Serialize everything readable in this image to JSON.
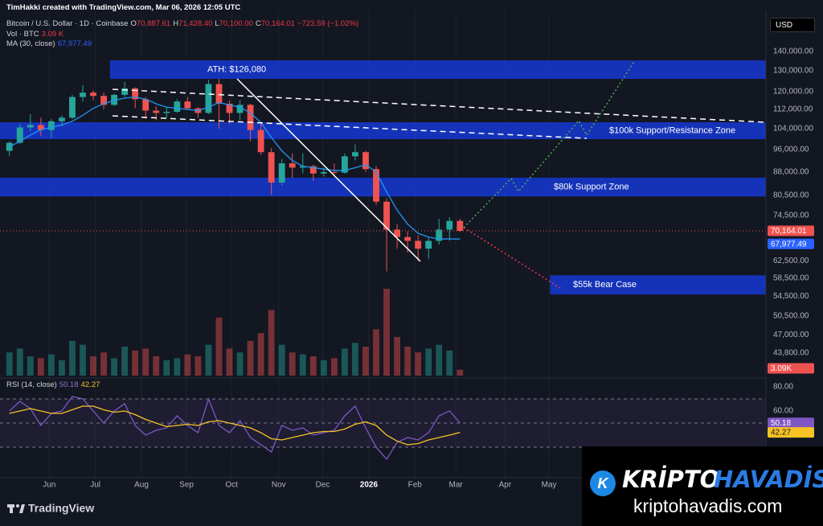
{
  "header": {
    "credit": "TimHakki created with TradingView.com, Mar 06, 2026 12:05 UTC",
    "symbol": "Bitcoin / U.S. Dollar · 1D · Coinbase",
    "ohlc": [
      {
        "key": "O",
        "value": "70,887.61"
      },
      {
        "key": "H",
        "value": "71,428.40"
      },
      {
        "key": "L",
        "value": "70,100.00"
      },
      {
        "key": "C",
        "value": "70,164.01"
      }
    ],
    "change": "−723.59 (−1.02%)"
  },
  "currency": "USD",
  "branding": {
    "tradingview": "TradingView",
    "site_name_1": "KRİPTO",
    "site_name_2": "HAVADİS",
    "site_url": "kriptohavadis.com"
  },
  "chart_data": {
    "type": "candlestick",
    "log_scale": true,
    "grid": true,
    "up_color": "#26a69a",
    "down_color": "#ef5350",
    "xlim": [
      -0.9,
      72.2
    ],
    "xticks": [
      {
        "value": 3.8,
        "label": "Jun"
      },
      {
        "value": 8.2,
        "label": "Jul"
      },
      {
        "value": 12.6,
        "label": "Aug"
      },
      {
        "value": 16.9,
        "label": "Sep"
      },
      {
        "value": 21.2,
        "label": "Oct"
      },
      {
        "value": 25.7,
        "label": "Nov"
      },
      {
        "value": 29.9,
        "label": "Dec"
      },
      {
        "value": 34.3,
        "label": "2026"
      },
      {
        "value": 38.7,
        "label": "Feb"
      },
      {
        "value": 42.6,
        "label": "Mar"
      },
      {
        "value": 47.3,
        "label": "Apr"
      },
      {
        "value": 51.5,
        "label": "May"
      }
    ],
    "ylim": [
      40160,
      160500
    ],
    "yticks": [
      {
        "value": 140000,
        "label": "140,000.00"
      },
      {
        "value": 130000,
        "label": "130,000.00"
      },
      {
        "value": 120000,
        "label": "120,000.00"
      },
      {
        "value": 112000,
        "label": "112,000.00"
      },
      {
        "value": 104000,
        "label": "104,000.00"
      },
      {
        "value": 96000,
        "label": "96,000.00"
      },
      {
        "value": 88000,
        "label": "88,000.00"
      },
      {
        "value": 80500,
        "label": "80,500.00"
      },
      {
        "value": 74500,
        "label": "74,500.00"
      },
      {
        "value": 62500,
        "label": "62,500.00"
      },
      {
        "value": 58500,
        "label": "58,500.00"
      },
      {
        "value": 54500,
        "label": "54,500.00"
      },
      {
        "value": 50500,
        "label": "50,500.00"
      },
      {
        "value": 47000,
        "label": "47,000.00"
      },
      {
        "value": 43800,
        "label": "43,800.00"
      }
    ],
    "open": [
      95500,
      98500,
      104500,
      105500,
      103500,
      107000,
      108500,
      117500,
      119500,
      118000,
      114000,
      118500,
      121500,
      116500,
      111500,
      110500,
      111000,
      115500,
      112500,
      110500,
      123500,
      114500,
      110500,
      114000,
      103500,
      95000,
      84500,
      91000,
      89500,
      90000,
      87500,
      88000,
      87800,
      93500,
      95000,
      89000,
      78500,
      70500,
      68500,
      67500,
      65500,
      67500,
      70500,
      72900
    ],
    "high": [
      99000,
      106000,
      110000,
      108500,
      108000,
      109500,
      118500,
      123000,
      120500,
      119500,
      119000,
      124500,
      122000,
      117500,
      113500,
      113000,
      116500,
      117500,
      113000,
      125500,
      126080,
      116000,
      116000,
      114500,
      106500,
      96500,
      92500,
      94500,
      94500,
      90500,
      89500,
      91000,
      94500,
      97900,
      95500,
      90000,
      79500,
      72000,
      70000,
      69000,
      68500,
      73500,
      74000,
      73500
    ],
    "low": [
      93500,
      98000,
      103000,
      101000,
      100500,
      105000,
      108000,
      115500,
      116000,
      112000,
      113500,
      117500,
      112500,
      108000,
      107500,
      108500,
      110500,
      112000,
      108500,
      110000,
      104000,
      106000,
      107500,
      99000,
      94000,
      80600,
      83500,
      86000,
      87500,
      85000,
      86500,
      86500,
      87500,
      92000,
      88000,
      77500,
      60000,
      65500,
      64500,
      62500,
      63000,
      66500,
      67500,
      69800
    ],
    "close": [
      98500,
      104500,
      105500,
      103500,
      107000,
      108500,
      117500,
      119500,
      118000,
      114000,
      118500,
      121500,
      116500,
      111500,
      110500,
      111000,
      115500,
      112500,
      110500,
      123500,
      114500,
      110500,
      114000,
      103500,
      95000,
      84500,
      91000,
      89500,
      90000,
      87500,
      88000,
      87800,
      93500,
      95000,
      89000,
      78500,
      70500,
      68500,
      67500,
      65500,
      67500,
      70500,
      72900,
      70164.01
    ],
    "last_price": {
      "value": 70164.01,
      "label": "70,164.01"
    },
    "ma": {
      "name": "MA (30, close)",
      "color": "#2196f3",
      "values": [
        97000,
        99000,
        101500,
        103500,
        104500,
        105500,
        107000,
        109500,
        112500,
        114500,
        116000,
        117000,
        117500,
        116500,
        114500,
        113000,
        112500,
        112000,
        111500,
        113000,
        115000,
        114000,
        113000,
        110500,
        106500,
        100500,
        95500,
        92000,
        90000,
        89500,
        89000,
        88500,
        88500,
        89500,
        90500,
        88000,
        81500,
        76000,
        72000,
        69500,
        68500,
        68000,
        68000,
        67977.49
      ],
      "value_label": "67,977.49"
    },
    "volume": {
      "name": "Vol · BTC",
      "ylim": [
        0,
        50
      ],
      "values": [
        12,
        14,
        10,
        9,
        11,
        8,
        18,
        16,
        10,
        12,
        9,
        15,
        13,
        14,
        10,
        8,
        9,
        11,
        10,
        16,
        30,
        14,
        12,
        18,
        22,
        34,
        16,
        12,
        11,
        10,
        8,
        9,
        14,
        17,
        15,
        24,
        45,
        20,
        15,
        12,
        14,
        16,
        13,
        3.09
      ],
      "value_label": "3.09 K",
      "axis_label": "3.09K"
    },
    "zones": [
      {
        "label": "ATH: $126,080",
        "range": [
          126000,
          135300
        ],
        "start": 9.6
      },
      {
        "label": "$100k Support/Resistance Zone",
        "range": [
          99900,
          106600
        ],
        "start": -0.9
      },
      {
        "label": "$80k Support Zone",
        "range": [
          80100,
          86100
        ],
        "start": -0.9
      },
      {
        "label": "$55k Bear Case",
        "range": [
          54900,
          59100
        ],
        "start": 51.6
      }
    ],
    "zone_color": "#1636c7",
    "rsi": {
      "name": "RSI (14, close)",
      "color": "#7e57c2",
      "ma_color": "#f7c325",
      "values": [
        60,
        68,
        62,
        48,
        58,
        60,
        72,
        70,
        60,
        50,
        60,
        66,
        48,
        40,
        44,
        46,
        56,
        48,
        42,
        70,
        48,
        42,
        52,
        38,
        32,
        26,
        48,
        44,
        46,
        40,
        42,
        44,
        56,
        64,
        46,
        30,
        20,
        34,
        38,
        36,
        42,
        56,
        60,
        50.18
      ],
      "ma_values": [
        58,
        60,
        62,
        60,
        58,
        58,
        61,
        64,
        64,
        61,
        59,
        60,
        57,
        53,
        50,
        47,
        48,
        49,
        48,
        51,
        52,
        50,
        48,
        46,
        42,
        37,
        36,
        38,
        40,
        42,
        43,
        43,
        45,
        49,
        51,
        48,
        40,
        35,
        32,
        33,
        36,
        38,
        40,
        42.27
      ],
      "ylim": [
        7.3,
        86
      ],
      "yticks": [
        {
          "value": 80,
          "label": "80.00"
        },
        {
          "value": 60,
          "label": "60.00"
        }
      ],
      "bands": [
        30,
        50,
        70
      ]
    }
  }
}
